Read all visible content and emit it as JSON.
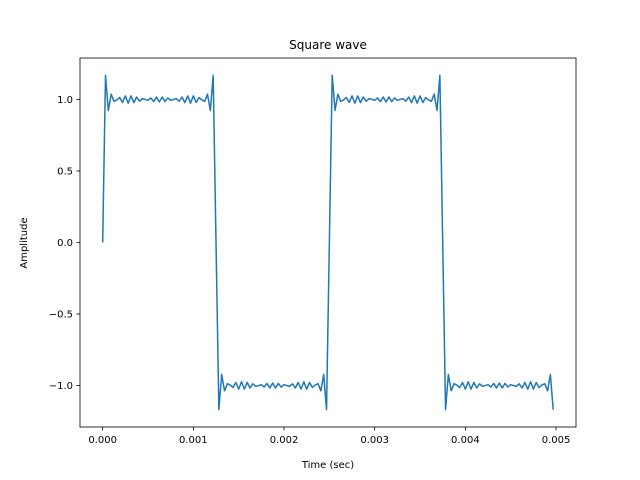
{
  "chart_data": {
    "type": "line",
    "title": "Square wave",
    "xlabel": "Time (sec)",
    "ylabel": "Amplitude",
    "xlim": [
      -0.00025,
      0.00522
    ],
    "ylim": [
      -1.29,
      1.29
    ],
    "xticks": [
      0.0,
      0.001,
      0.002,
      0.003,
      0.004,
      0.005
    ],
    "xtick_labels": [
      "0.000",
      "0.001",
      "0.002",
      "0.003",
      "0.004",
      "0.005"
    ],
    "yticks": [
      -1.0,
      -0.5,
      0.0,
      0.5,
      1.0
    ],
    "ytick_labels": [
      "−1.0",
      "−0.5",
      "0.0",
      "0.5",
      "1.0"
    ],
    "grid": false,
    "series": [
      {
        "color": "#1f77b4",
        "sampling": {
          "start": 0,
          "stop": 0.005,
          "step": 3.125e-05
        },
        "signal": {
          "kind": "fourier-square",
          "fundamental_hz": 400,
          "odd_harmonics": [
            1,
            3,
            5,
            7,
            9,
            11,
            13,
            15,
            17,
            19,
            21,
            23,
            25,
            27,
            29,
            31,
            33,
            35
          ],
          "amplitude": 1.0
        }
      }
    ]
  }
}
